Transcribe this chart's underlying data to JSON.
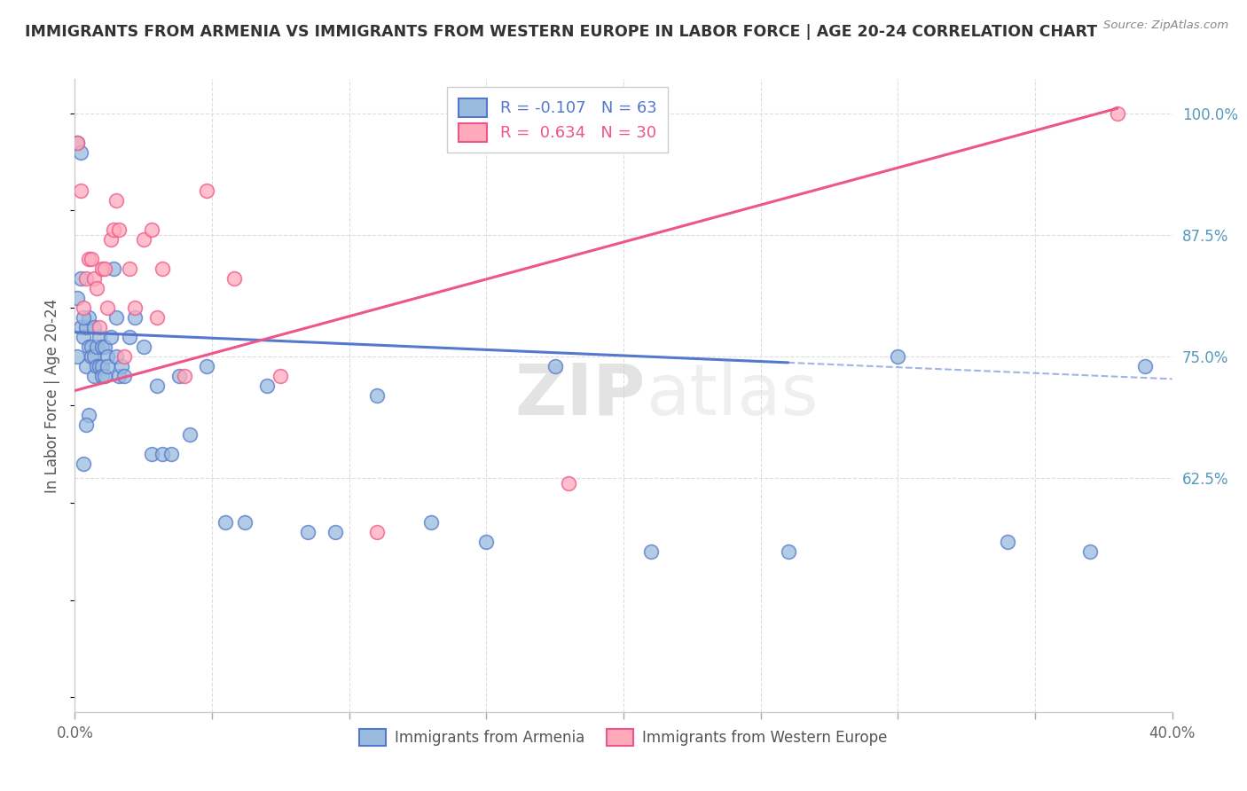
{
  "title": "IMMIGRANTS FROM ARMENIA VS IMMIGRANTS FROM WESTERN EUROPE IN LABOR FORCE | AGE 20-24 CORRELATION CHART",
  "source": "Source: ZipAtlas.com",
  "ylabel": "In Labor Force | Age 20-24",
  "yaxis_labels": [
    "100.0%",
    "87.5%",
    "75.0%",
    "62.5%"
  ],
  "yaxis_values": [
    1.0,
    0.875,
    0.75,
    0.625
  ],
  "xmin": 0.0,
  "xmax": 0.4,
  "ymin": 0.385,
  "ymax": 1.035,
  "legend_armenia": "Immigrants from Armenia",
  "legend_western": "Immigrants from Western Europe",
  "R_armenia": "-0.107",
  "N_armenia": "63",
  "R_western": "0.634",
  "N_western": "30",
  "color_armenia": "#99BBDD",
  "color_western": "#FFAABB",
  "color_armenia_line": "#5577CC",
  "color_western_line": "#EE5588",
  "watermark_zip": "ZIP",
  "watermark_atlas": "atlas",
  "blue_scatter_x": [
    0.001,
    0.001,
    0.002,
    0.002,
    0.003,
    0.003,
    0.004,
    0.004,
    0.005,
    0.005,
    0.005,
    0.006,
    0.006,
    0.007,
    0.007,
    0.007,
    0.008,
    0.008,
    0.009,
    0.009,
    0.01,
    0.01,
    0.01,
    0.011,
    0.011,
    0.012,
    0.012,
    0.013,
    0.014,
    0.015,
    0.015,
    0.016,
    0.017,
    0.018,
    0.02,
    0.022,
    0.025,
    0.028,
    0.03,
    0.032,
    0.035,
    0.038,
    0.042,
    0.048,
    0.055,
    0.062,
    0.07,
    0.085,
    0.095,
    0.11,
    0.13,
    0.15,
    0.175,
    0.21,
    0.26,
    0.3,
    0.34,
    0.37,
    0.39,
    0.001,
    0.002,
    0.003,
    0.004
  ],
  "blue_scatter_y": [
    0.97,
    0.81,
    0.96,
    0.78,
    0.77,
    0.64,
    0.78,
    0.74,
    0.79,
    0.76,
    0.69,
    0.76,
    0.75,
    0.78,
    0.75,
    0.73,
    0.76,
    0.74,
    0.77,
    0.74,
    0.76,
    0.74,
    0.73,
    0.76,
    0.73,
    0.75,
    0.74,
    0.77,
    0.84,
    0.79,
    0.75,
    0.73,
    0.74,
    0.73,
    0.77,
    0.79,
    0.76,
    0.65,
    0.72,
    0.65,
    0.65,
    0.73,
    0.67,
    0.74,
    0.58,
    0.58,
    0.72,
    0.57,
    0.57,
    0.71,
    0.58,
    0.56,
    0.74,
    0.55,
    0.55,
    0.75,
    0.56,
    0.55,
    0.74,
    0.75,
    0.83,
    0.79,
    0.68
  ],
  "pink_scatter_x": [
    0.001,
    0.002,
    0.003,
    0.004,
    0.005,
    0.006,
    0.007,
    0.008,
    0.009,
    0.01,
    0.011,
    0.012,
    0.013,
    0.014,
    0.015,
    0.016,
    0.018,
    0.02,
    0.022,
    0.025,
    0.028,
    0.03,
    0.032,
    0.04,
    0.048,
    0.058,
    0.075,
    0.11,
    0.18,
    0.38
  ],
  "pink_scatter_y": [
    0.97,
    0.92,
    0.8,
    0.83,
    0.85,
    0.85,
    0.83,
    0.82,
    0.78,
    0.84,
    0.84,
    0.8,
    0.87,
    0.88,
    0.91,
    0.88,
    0.75,
    0.84,
    0.8,
    0.87,
    0.88,
    0.79,
    0.84,
    0.73,
    0.92,
    0.83,
    0.73,
    0.57,
    0.62,
    1.0
  ],
  "blue_line_x0": 0.0,
  "blue_line_x_solid_end": 0.26,
  "blue_line_x1": 0.4,
  "blue_line_y0": 0.775,
  "blue_line_y1": 0.727,
  "pink_line_x0": 0.0,
  "pink_line_x1": 0.38,
  "pink_line_y0": 0.715,
  "pink_line_y1": 1.005,
  "n_xticks": 9
}
